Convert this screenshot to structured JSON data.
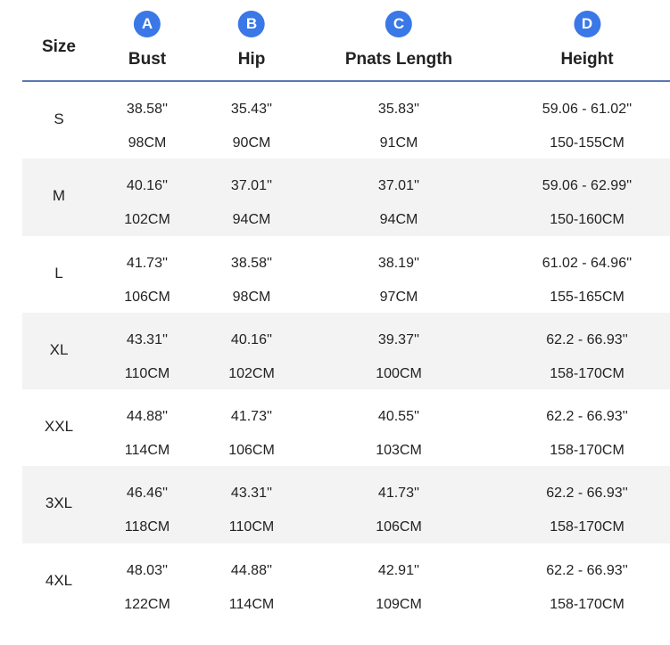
{
  "size_header": "Size",
  "columns": [
    {
      "badge": "A",
      "title": "Bust"
    },
    {
      "badge": "B",
      "title": "Hip"
    },
    {
      "badge": "C",
      "title": "Pnats Length"
    },
    {
      "badge": "D",
      "title": "Height"
    }
  ],
  "colors": {
    "badge": "#3a78e8",
    "header_rule": "#5a78b4",
    "shaded_row": "#f3f3f3",
    "text": "#222222"
  },
  "rows": [
    {
      "size": "S",
      "values": [
        {
          "inch": "38.58''",
          "cm": "98CM"
        },
        {
          "inch": "35.43''",
          "cm": "90CM"
        },
        {
          "inch": "35.83''",
          "cm": "91CM"
        },
        {
          "inch": "59.06 - 61.02''",
          "cm": "150-155CM"
        }
      ]
    },
    {
      "size": "M",
      "values": [
        {
          "inch": "40.16''",
          "cm": "102CM"
        },
        {
          "inch": "37.01''",
          "cm": "94CM"
        },
        {
          "inch": "37.01''",
          "cm": "94CM"
        },
        {
          "inch": "59.06 - 62.99''",
          "cm": "150-160CM"
        }
      ]
    },
    {
      "size": "L",
      "values": [
        {
          "inch": "41.73''",
          "cm": "106CM"
        },
        {
          "inch": "38.58''",
          "cm": "98CM"
        },
        {
          "inch": "38.19''",
          "cm": "97CM"
        },
        {
          "inch": "61.02 - 64.96''",
          "cm": "155-165CM"
        }
      ]
    },
    {
      "size": "XL",
      "values": [
        {
          "inch": "43.31''",
          "cm": "110CM"
        },
        {
          "inch": "40.16''",
          "cm": "102CM"
        },
        {
          "inch": "39.37''",
          "cm": "100CM"
        },
        {
          "inch": "62.2 - 66.93''",
          "cm": "158-170CM"
        }
      ]
    },
    {
      "size": "XXL",
      "values": [
        {
          "inch": "44.88''",
          "cm": "114CM"
        },
        {
          "inch": "41.73''",
          "cm": "106CM"
        },
        {
          "inch": "40.55''",
          "cm": "103CM"
        },
        {
          "inch": "62.2 - 66.93''",
          "cm": "158-170CM"
        }
      ]
    },
    {
      "size": "3XL",
      "values": [
        {
          "inch": "46.46''",
          "cm": "118CM"
        },
        {
          "inch": "43.31''",
          "cm": "110CM"
        },
        {
          "inch": "41.73''",
          "cm": "106CM"
        },
        {
          "inch": "62.2 - 66.93''",
          "cm": "158-170CM"
        }
      ]
    },
    {
      "size": "4XL",
      "values": [
        {
          "inch": "48.03''",
          "cm": "122CM"
        },
        {
          "inch": "44.88''",
          "cm": "114CM"
        },
        {
          "inch": "42.91''",
          "cm": "109CM"
        },
        {
          "inch": "62.2 - 66.93''",
          "cm": "158-170CM"
        }
      ]
    }
  ]
}
